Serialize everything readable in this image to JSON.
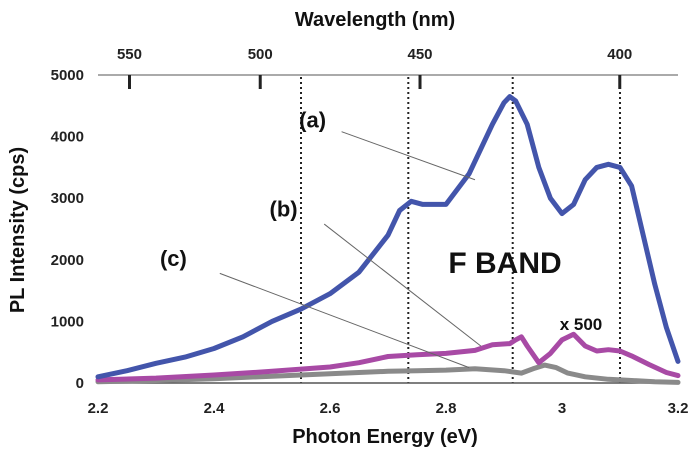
{
  "chart_data": {
    "type": "line",
    "xlabel": "Photon Energy (eV)",
    "ylabel": "PL Intensity (cps)",
    "top_xlabel": "Wavelength (nm)",
    "xlim": [
      2.2,
      3.2
    ],
    "ylim": [
      0,
      5000
    ],
    "x_ticks": [
      2.2,
      2.4,
      2.6,
      2.8,
      3.0,
      3.2
    ],
    "x_tick_labels": [
      "2.2",
      "2.4",
      "2.6",
      "2.8",
      "3",
      "3.2"
    ],
    "y_ticks": [
      0,
      1000,
      2000,
      3000,
      4000,
      5000
    ],
    "y_tick_labels": [
      "0",
      "1000",
      "2000",
      "3000",
      "4000",
      "5000"
    ],
    "top_ticks": [
      {
        "label": "550",
        "x": 2.2543
      },
      {
        "label": "500",
        "x": 2.4797
      },
      {
        "label": "450",
        "x": 2.7552
      },
      {
        "label": "400",
        "x": 3.0996
      }
    ],
    "vlines": [
      2.55,
      2.735,
      2.915,
      3.1
    ],
    "series": [
      {
        "name": "(a)",
        "color": "#4355ab",
        "x": [
          2.2,
          2.25,
          2.3,
          2.35,
          2.4,
          2.45,
          2.5,
          2.55,
          2.6,
          2.65,
          2.7,
          2.72,
          2.74,
          2.76,
          2.8,
          2.84,
          2.88,
          2.9,
          2.91,
          2.92,
          2.94,
          2.96,
          2.98,
          3.0,
          3.02,
          3.04,
          3.06,
          3.08,
          3.1,
          3.12,
          3.14,
          3.16,
          3.18,
          3.2
        ],
        "values": [
          100,
          200,
          320,
          420,
          560,
          750,
          1000,
          1200,
          1450,
          1800,
          2400,
          2800,
          2950,
          2900,
          2900,
          3400,
          4200,
          4550,
          4650,
          4580,
          4200,
          3500,
          3000,
          2750,
          2900,
          3300,
          3500,
          3550,
          3500,
          3200,
          2400,
          1600,
          900,
          350
        ]
      },
      {
        "name": "(b)",
        "color": "#a84aa5",
        "x": [
          2.2,
          2.3,
          2.4,
          2.5,
          2.6,
          2.65,
          2.7,
          2.75,
          2.8,
          2.85,
          2.88,
          2.91,
          2.92,
          2.93,
          2.94,
          2.96,
          2.98,
          3.0,
          3.02,
          3.04,
          3.06,
          3.08,
          3.1,
          3.12,
          3.15,
          3.18,
          3.2
        ],
        "values": [
          50,
          80,
          130,
          190,
          260,
          330,
          430,
          460,
          480,
          530,
          620,
          640,
          700,
          750,
          600,
          330,
          480,
          700,
          790,
          600,
          520,
          540,
          520,
          440,
          300,
          170,
          120
        ]
      },
      {
        "name": "(c)",
        "color": "#8a8a8a",
        "x": [
          2.2,
          2.3,
          2.4,
          2.5,
          2.6,
          2.7,
          2.75,
          2.8,
          2.85,
          2.9,
          2.93,
          2.95,
          2.97,
          2.99,
          3.01,
          3.04,
          3.08,
          3.12,
          3.16,
          3.2
        ],
        "values": [
          20,
          40,
          70,
          110,
          150,
          190,
          200,
          210,
          230,
          200,
          160,
          230,
          290,
          250,
          160,
          100,
          60,
          40,
          20,
          10
        ]
      }
    ],
    "annotations": [
      {
        "text": "(a)",
        "x": 2.57,
        "y": 4150,
        "lx1": 2.62,
        "ly1": 4080,
        "lx2": 2.85,
        "ly2": 3300
      },
      {
        "text": "(b)",
        "x": 2.52,
        "y": 2700,
        "lx1": 2.59,
        "ly1": 2580,
        "lx2": 2.86,
        "ly2": 600
      },
      {
        "text": "(c)",
        "x": 2.33,
        "y": 1900,
        "lx1": 2.41,
        "ly1": 1780,
        "lx2": 2.84,
        "ly2": 250
      }
    ],
    "labels": {
      "band": "F BAND",
      "multiplier": "x 500"
    }
  }
}
